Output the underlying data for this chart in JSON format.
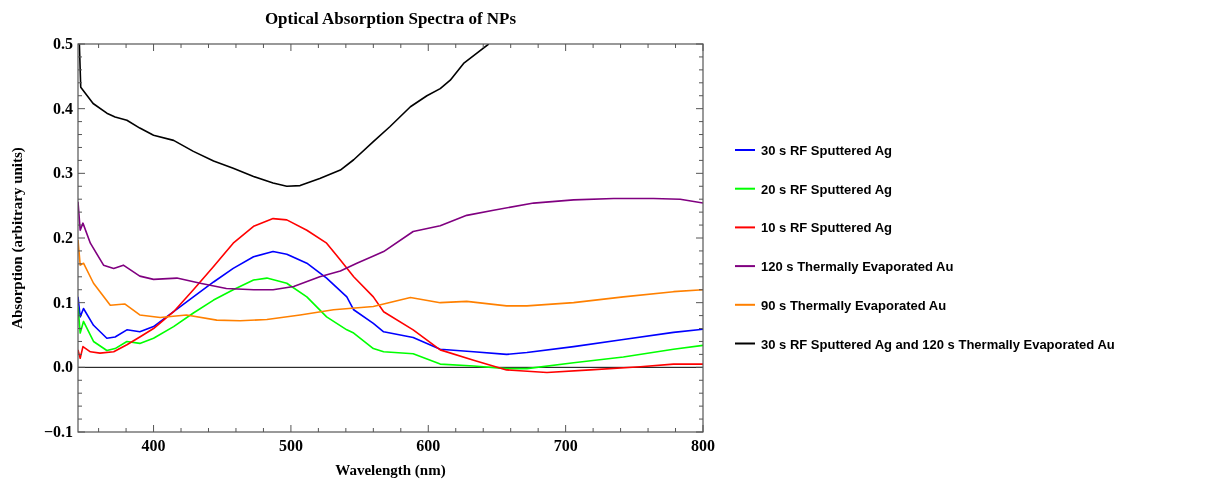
{
  "chart_data": {
    "type": "line",
    "title": "Optical Absorption Spectra of NPs",
    "xlabel": "Wavelength (nm)",
    "ylabel": "Absorption (arbitrary units)",
    "xlim": [
      345,
      800
    ],
    "ylim": [
      -0.1,
      0.5
    ],
    "xticks": [
      {
        "value": 360,
        "label": null
      },
      {
        "value": 380,
        "label": null
      },
      400,
      {
        "value": 420,
        "label": null
      },
      {
        "value": 440,
        "label": null
      },
      {
        "value": 460,
        "label": null
      },
      {
        "value": 480,
        "label": null
      },
      500,
      {
        "value": 520,
        "label": null
      },
      {
        "value": 540,
        "label": null
      },
      {
        "value": 560,
        "label": null
      },
      {
        "value": 580,
        "label": null
      },
      600,
      {
        "value": 620,
        "label": null
      },
      {
        "value": 640,
        "label": null
      },
      {
        "value": 660,
        "label": null
      },
      {
        "value": 680,
        "label": null
      },
      700,
      {
        "value": 720,
        "label": null
      },
      {
        "value": 740,
        "label": null
      },
      {
        "value": 760,
        "label": null
      },
      {
        "value": 780,
        "label": null
      },
      800
    ],
    "yticks": [
      {
        "value": -0.1,
        "label": "−0.1"
      },
      {
        "value": -0.08,
        "label": null
      },
      {
        "value": -0.06,
        "label": null
      },
      {
        "value": -0.04,
        "label": null
      },
      {
        "value": -0.02,
        "label": null
      },
      {
        "value": 0,
        "label": "0.0"
      },
      {
        "value": 0.02,
        "label": null
      },
      {
        "value": 0.04,
        "label": null
      },
      {
        "value": 0.06,
        "label": null
      },
      {
        "value": 0.08,
        "label": null
      },
      0.1,
      {
        "value": 0.12,
        "label": null
      },
      {
        "value": 0.14,
        "label": null
      },
      {
        "value": 0.16,
        "label": null
      },
      {
        "value": 0.18,
        "label": null
      },
      0.2,
      {
        "value": 0.22,
        "label": null
      },
      {
        "value": 0.24,
        "label": null
      },
      {
        "value": 0.26,
        "label": null
      },
      {
        "value": 0.28,
        "label": null
      },
      0.3,
      {
        "value": 0.32,
        "label": null
      },
      {
        "value": 0.34,
        "label": null
      },
      {
        "value": 0.36,
        "label": null
      },
      {
        "value": 0.38,
        "label": null
      },
      0.4,
      {
        "value": 0.42,
        "label": null
      },
      {
        "value": 0.44,
        "label": null
      },
      {
        "value": 0.46,
        "label": null
      },
      {
        "value": 0.48,
        "label": null
      },
      0.5
    ],
    "legend": "right",
    "ref_lines": [
      {
        "axis": "y",
        "value": 0,
        "color": "#000000"
      }
    ],
    "series": [
      {
        "name": "30 s RF Sputtered Ag",
        "color": "#0000ff",
        "x": [
          345,
          346.6,
          349,
          356.3,
          366,
          372,
          380.6,
          390,
          400,
          414.6,
          429,
          443.7,
          458,
          472.8,
          487,
          497,
          511.6,
          526,
          540.7,
          545.7,
          560,
          567.5,
          589,
          608.7,
          633,
          657,
          671.8,
          705.8,
          742,
          778.5,
          800
        ],
        "values": [
          0.109,
          0.078,
          0.091,
          0.065,
          0.045,
          0.047,
          0.058,
          0.055,
          0.063,
          0.086,
          0.109,
          0.132,
          0.153,
          0.171,
          0.179,
          0.175,
          0.161,
          0.138,
          0.109,
          0.089,
          0.068,
          0.055,
          0.046,
          0.028,
          0.024,
          0.02,
          0.023,
          0.032,
          0.043,
          0.054,
          0.059
        ]
      },
      {
        "name": "20 s RF Sputtered Ag",
        "color": "#00ff00",
        "x": [
          345,
          346.6,
          349,
          356.3,
          366,
          372,
          380.6,
          390,
          400,
          414.6,
          429,
          443.7,
          458,
          472.8,
          482.5,
          497,
          511.6,
          526,
          540.7,
          545.7,
          560,
          567.5,
          589,
          608.7,
          633,
          657,
          671.8,
          705.8,
          742,
          778.5,
          800
        ],
        "values": [
          0.094,
          0.053,
          0.071,
          0.04,
          0.026,
          0.029,
          0.04,
          0.037,
          0.045,
          0.063,
          0.084,
          0.104,
          0.12,
          0.135,
          0.138,
          0.13,
          0.109,
          0.078,
          0.058,
          0.053,
          0.029,
          0.024,
          0.021,
          0.005,
          0.002,
          -0.002,
          -0.002,
          0.007,
          0.016,
          0.028,
          0.034
        ]
      },
      {
        "name": "10 s RF Sputtered Ag",
        "color": "#ff0000",
        "x": [
          345,
          346.6,
          348.6,
          354,
          361,
          371,
          380.6,
          390,
          400,
          414.6,
          429,
          443.7,
          458,
          472.8,
          487,
          497,
          511.6,
          526,
          536,
          545.7,
          560,
          567.5,
          589,
          608.7,
          633,
          657,
          686.4,
          718,
          754.4,
          778.5,
          800
        ],
        "values": [
          0.027,
          0.014,
          0.032,
          0.024,
          0.022,
          0.024,
          0.035,
          0.047,
          0.06,
          0.086,
          0.12,
          0.156,
          0.192,
          0.218,
          0.23,
          0.228,
          0.212,
          0.192,
          0.166,
          0.14,
          0.109,
          0.086,
          0.058,
          0.027,
          0.011,
          -0.004,
          -0.008,
          -0.004,
          0.001,
          0.005,
          0.005
        ]
      },
      {
        "name": "120 s Thermally Evaporated Au",
        "color": "#800080",
        "x": [
          345,
          346.6,
          348.6,
          354,
          363.6,
          371,
          378,
          390,
          400,
          417,
          434,
          453,
          473,
          487,
          502,
          521,
          536,
          548,
          567.5,
          589,
          608.7,
          628,
          647.5,
          676.7,
          705.8,
          735,
          764,
          783.4,
          800
        ],
        "values": [
          0.256,
          0.212,
          0.223,
          0.192,
          0.158,
          0.153,
          0.158,
          0.141,
          0.136,
          0.138,
          0.13,
          0.122,
          0.12,
          0.12,
          0.125,
          0.14,
          0.149,
          0.161,
          0.179,
          0.21,
          0.219,
          0.235,
          0.243,
          0.254,
          0.259,
          0.261,
          0.261,
          0.26,
          0.254
        ]
      },
      {
        "name": "90 s Thermally Evaporated Au",
        "color": "#ff8000",
        "x": [
          345,
          346.6,
          349,
          356.3,
          368.5,
          379,
          390,
          404.8,
          424,
          446,
          463,
          482.5,
          506.7,
          531,
          560,
          587,
          608.7,
          628,
          657,
          671.8,
          705.8,
          742,
          778.5,
          800
        ],
        "values": [
          0.197,
          0.158,
          0.161,
          0.13,
          0.096,
          0.098,
          0.081,
          0.077,
          0.081,
          0.073,
          0.072,
          0.074,
          0.081,
          0.089,
          0.094,
          0.108,
          0.1,
          0.102,
          0.095,
          0.095,
          0.1,
          0.109,
          0.117,
          0.12
        ]
      },
      {
        "name": "30 s RF Sputtered Ag and 120 s Thermally Evaporated Au",
        "color": "#000000",
        "x": [
          346,
          347,
          356,
          366,
          372,
          380.6,
          390,
          400,
          414.6,
          429,
          443.7,
          458,
          472.8,
          487,
          497,
          506.7,
          521,
          536,
          545.7,
          560,
          572,
          587,
          599,
          608.7,
          616,
          625.7,
          635.4,
          644
        ],
        "values": [
          0.5,
          0.433,
          0.408,
          0.393,
          0.387,
          0.382,
          0.37,
          0.359,
          0.351,
          0.334,
          0.319,
          0.308,
          0.295,
          0.285,
          0.28,
          0.281,
          0.292,
          0.305,
          0.321,
          0.349,
          0.372,
          0.403,
          0.42,
          0.431,
          0.444,
          0.47,
          0.486,
          0.5
        ]
      }
    ]
  }
}
